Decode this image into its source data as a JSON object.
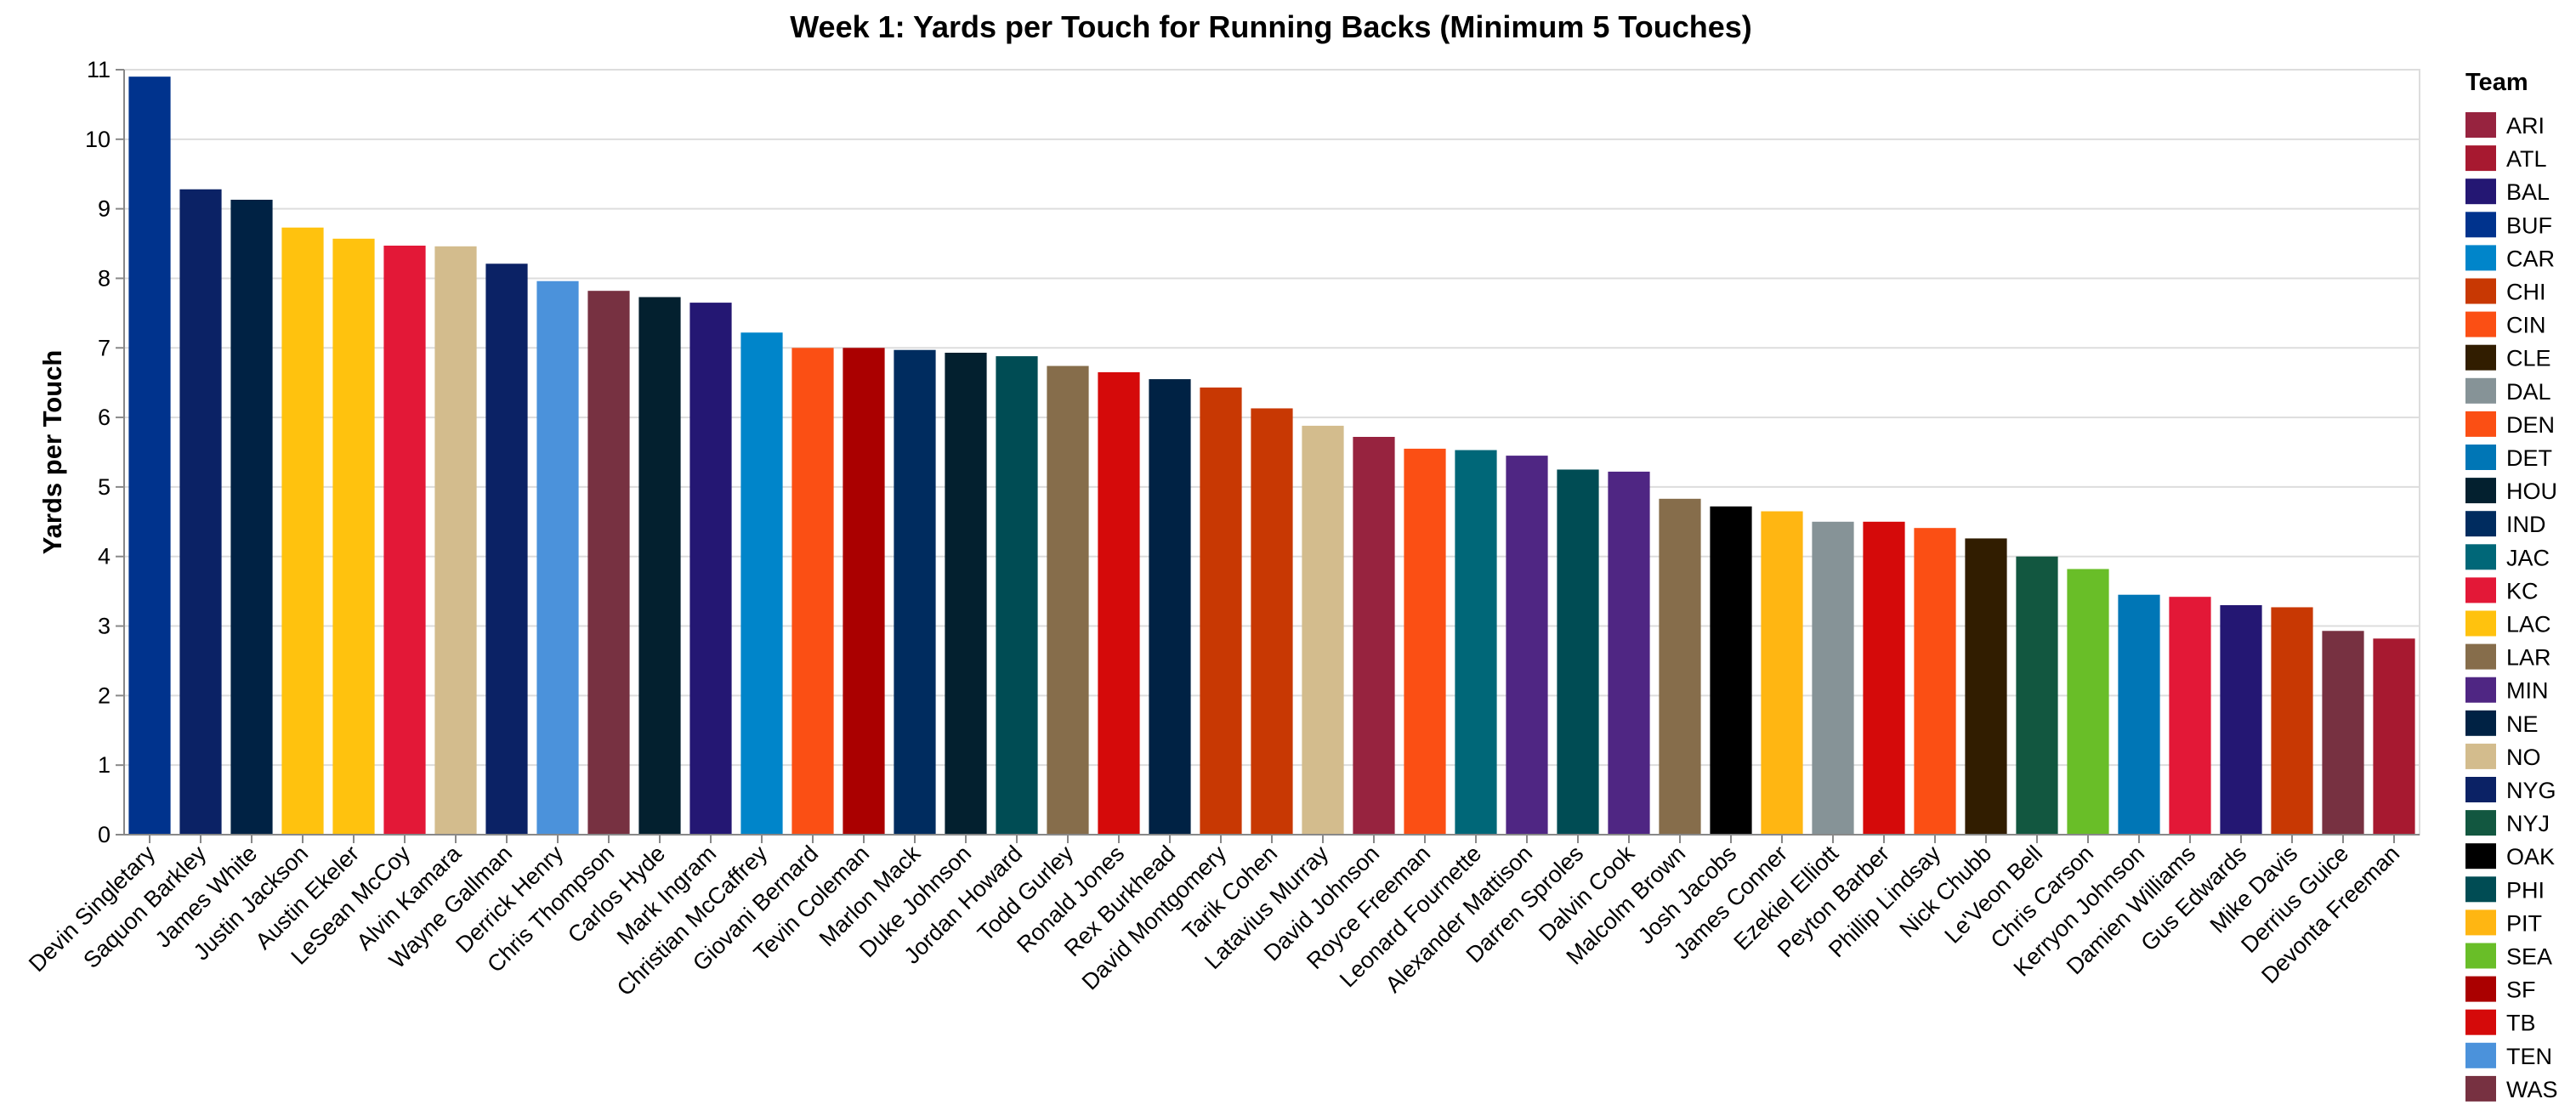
{
  "chart_data": {
    "type": "bar",
    "title": "Week 1: Yards per Touch for Running Backs (Minimum 5 Touches)",
    "xlabel": "",
    "ylabel": "Yards per Touch",
    "ylim": [
      0,
      11
    ],
    "yticks": [
      0,
      1,
      2,
      3,
      4,
      5,
      6,
      7,
      8,
      9,
      10,
      11
    ],
    "grid": true,
    "legend": {
      "title": "Team",
      "placement": "right"
    },
    "categories": [
      "Devin Singletary",
      "Saquon Barkley",
      "James White",
      "Justin Jackson",
      "Austin Ekeler",
      "LeSean McCoy",
      "Alvin Kamara",
      "Wayne Gallman",
      "Derrick Henry",
      "Chris Thompson",
      "Carlos Hyde",
      "Mark Ingram",
      "Christian McCaffrey",
      "Giovani Bernard",
      "Tevin Coleman",
      "Marlon Mack",
      "Duke Johnson",
      "Jordan Howard",
      "Todd Gurley",
      "Ronald Jones",
      "Rex Burkhead",
      "David Montgomery",
      "Tarik Cohen",
      "Latavius Murray",
      "David Johnson",
      "Royce Freeman",
      "Leonard Fournette",
      "Alexander Mattison",
      "Darren Sproles",
      "Dalvin Cook",
      "Malcolm Brown",
      "Josh Jacobs",
      "James Conner",
      "Ezekiel Elliott",
      "Peyton Barber",
      "Phillip Lindsay",
      "Nick Chubb",
      "Le'Veon Bell",
      "Chris Carson",
      "Kerryon Johnson",
      "Damien Williams",
      "Gus Edwards",
      "Mike Davis",
      "Derrius Guice",
      "Devonta Freeman"
    ],
    "values": [
      10.9,
      9.28,
      9.13,
      8.73,
      8.57,
      8.47,
      8.46,
      8.21,
      7.96,
      7.82,
      7.73,
      7.65,
      7.22,
      7.0,
      7.0,
      6.97,
      6.93,
      6.88,
      6.74,
      6.65,
      6.55,
      6.43,
      6.13,
      5.88,
      5.72,
      5.55,
      5.53,
      5.45,
      5.25,
      5.22,
      4.83,
      4.72,
      4.65,
      4.5,
      4.5,
      4.41,
      4.26,
      4.0,
      3.82,
      3.45,
      3.42,
      3.3,
      3.27,
      2.93,
      2.82
    ],
    "teams": [
      "BUF",
      "NYG",
      "NE",
      "LAC",
      "LAC",
      "KC",
      "NO",
      "NYG",
      "TEN",
      "WAS",
      "HOU",
      "BAL",
      "CAR",
      "CIN",
      "SF",
      "IND",
      "HOU",
      "PHI",
      "LAR",
      "TB",
      "NE",
      "CHI",
      "CHI",
      "NO",
      "ARI",
      "DEN",
      "JAC",
      "MIN",
      "PHI",
      "MIN",
      "LAR",
      "OAK",
      "PIT",
      "DAL",
      "TB",
      "DEN",
      "CLE",
      "NYJ",
      "SEA",
      "DET",
      "KC",
      "BAL",
      "CHI",
      "WAS",
      "ATL"
    ],
    "legend_entries": [
      {
        "team": "ARI",
        "color": "#97233F"
      },
      {
        "team": "ATL",
        "color": "#A71930"
      },
      {
        "team": "BAL",
        "color": "#241773"
      },
      {
        "team": "BUF",
        "color": "#00338D"
      },
      {
        "team": "CAR",
        "color": "#0085CA"
      },
      {
        "team": "CHI",
        "color": "#C83803"
      },
      {
        "team": "CIN",
        "color": "#FB4F14"
      },
      {
        "team": "CLE",
        "color": "#311D00"
      },
      {
        "team": "DAL",
        "color": "#869397"
      },
      {
        "team": "DEN",
        "color": "#FB4F14"
      },
      {
        "team": "DET",
        "color": "#0076B6"
      },
      {
        "team": "HOU",
        "color": "#03202F"
      },
      {
        "team": "IND",
        "color": "#002C5F"
      },
      {
        "team": "JAC",
        "color": "#006778"
      },
      {
        "team": "KC",
        "color": "#E31837"
      },
      {
        "team": "LAC",
        "color": "#FFC20E"
      },
      {
        "team": "LAR",
        "color": "#866D4B"
      },
      {
        "team": "MIN",
        "color": "#4F2683"
      },
      {
        "team": "NE",
        "color": "#002244"
      },
      {
        "team": "NO",
        "color": "#D3BC8D"
      },
      {
        "team": "NYG",
        "color": "#0B2265"
      },
      {
        "team": "NYJ",
        "color": "#125740"
      },
      {
        "team": "OAK",
        "color": "#000000"
      },
      {
        "team": "PHI",
        "color": "#004C54"
      },
      {
        "team": "PIT",
        "color": "#FFB612"
      },
      {
        "team": "SEA",
        "color": "#69BE28"
      },
      {
        "team": "SF",
        "color": "#AA0000"
      },
      {
        "team": "TB",
        "color": "#D50A0A"
      },
      {
        "team": "TEN",
        "color": "#4B92DB"
      },
      {
        "team": "WAS",
        "color": "#773141"
      }
    ]
  }
}
